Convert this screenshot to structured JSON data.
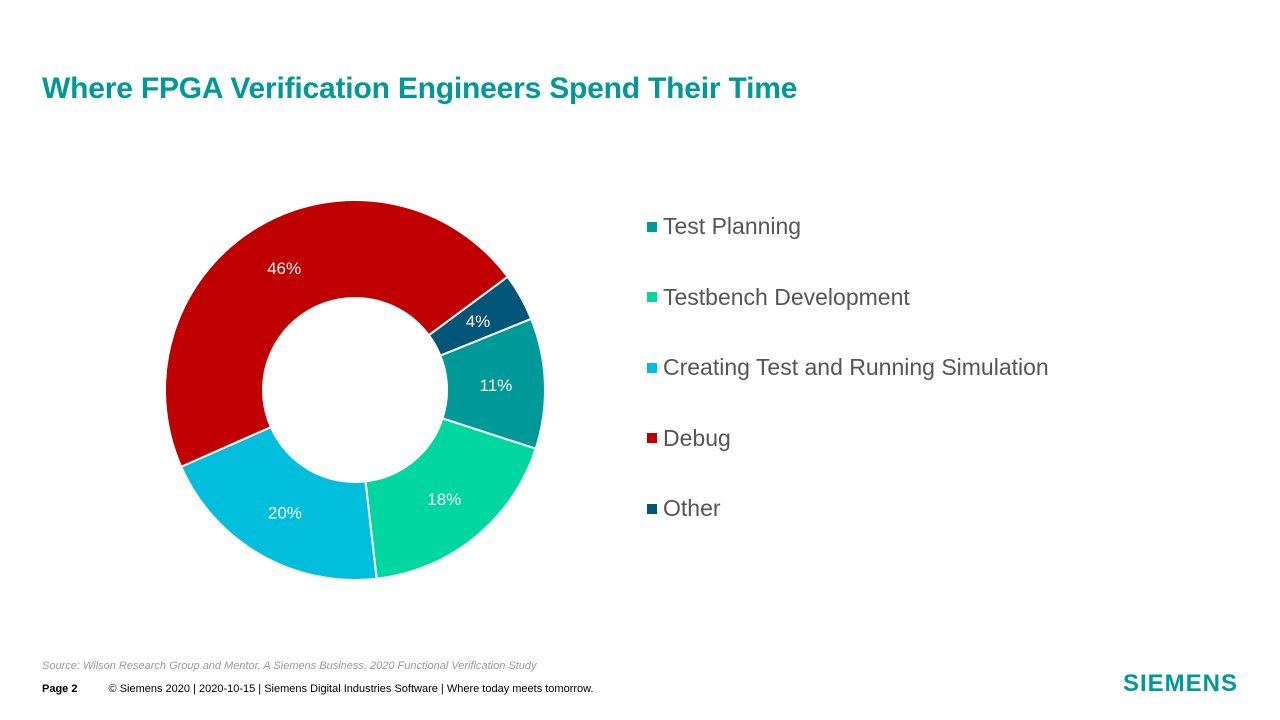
{
  "slide": {
    "title": "Where FPGA Verification Engineers Spend Their Time",
    "source": "Source:  Wilson Research Group and Mentor,  A Siemens Business, 2020 Functional Verification Study",
    "page_label": "Page 2",
    "footer_text": "© Siemens 2020 | 2020-10-15 | Siemens Digital Industries Software | Where today meets tomorrow.",
    "logo_text": "SIEMENS"
  },
  "chart_data": {
    "type": "pie",
    "donut": true,
    "title": "",
    "legend_position": "right",
    "categories": [
      "Test Planning",
      "Testbench Development",
      "Creating Test and Running Simulation",
      "Debug",
      "Other"
    ],
    "values": [
      11,
      18,
      20,
      46,
      4
    ],
    "labels": [
      "11%",
      "18%",
      "20%",
      "46%",
      "4%"
    ],
    "colors": [
      "#009999",
      "#00D7A0",
      "#00BEDC",
      "#C00000",
      "#005578"
    ]
  }
}
